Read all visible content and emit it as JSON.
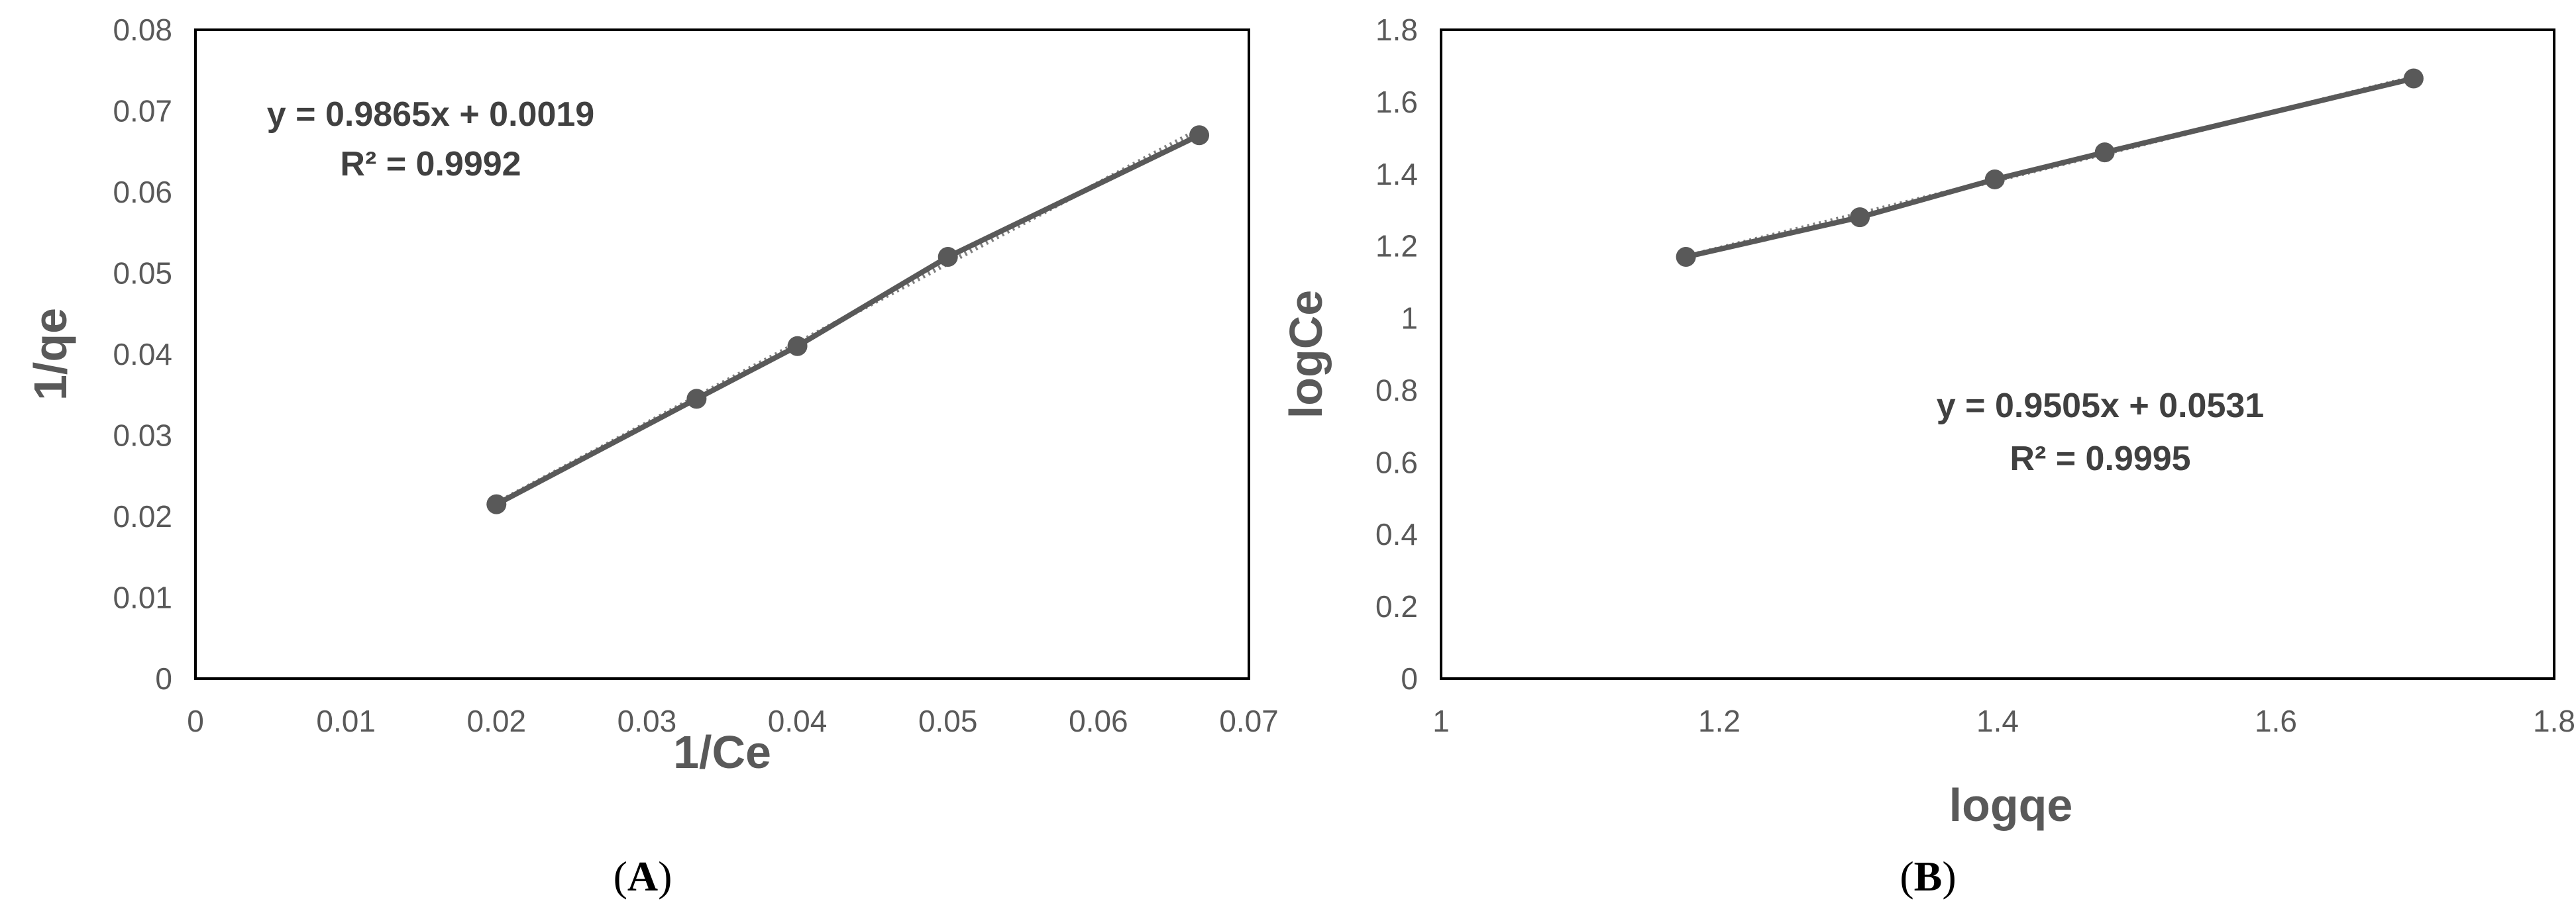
{
  "chart_data": [
    {
      "panel": "A",
      "type": "scatter",
      "xlabel": "1/Ce",
      "ylabel": "1/qe",
      "xlim": [
        0,
        0.07
      ],
      "ylim": [
        0,
        0.08
      ],
      "x_ticks": [
        "0",
        "0.01",
        "0.02",
        "0.03",
        "0.04",
        "0.05",
        "0.06",
        "0.07"
      ],
      "y_ticks": [
        "0",
        "0.01",
        "0.02",
        "0.03",
        "0.04",
        "0.05",
        "0.06",
        "0.07",
        "0.08"
      ],
      "series": [
        {
          "x": [
            0.02,
            0.0333,
            0.04,
            0.05,
            0.0667
          ],
          "y": [
            0.0215,
            0.0345,
            0.041,
            0.052,
            0.067
          ]
        }
      ],
      "trendline": {
        "slope": 0.9865,
        "intercept": 0.0019,
        "style": "dotted"
      },
      "annotations": [
        "y = 0.9865x + 0.0019",
        "R² = 0.9992"
      ],
      "grid": false,
      "legend": "none",
      "colors": {
        "series": "#595959",
        "frame": "#000000"
      }
    },
    {
      "panel": "B",
      "type": "scatter",
      "xlabel": "logqe",
      "ylabel": "logCe",
      "xlim": [
        1,
        1.8
      ],
      "ylim": [
        0,
        1.8
      ],
      "x_ticks": [
        "1",
        "1.2",
        "1.4",
        "1.6",
        "1.8"
      ],
      "y_ticks": [
        "0",
        "0.2",
        "0.4",
        "0.6",
        "0.8",
        "1",
        "1.2",
        "1.4",
        "1.6",
        "1.8"
      ],
      "series": [
        {
          "x": [
            1.176,
            1.301,
            1.398,
            1.477,
            1.699
          ],
          "y": [
            1.17,
            1.28,
            1.385,
            1.46,
            1.665
          ]
        }
      ],
      "trendline": {
        "slope": 0.9505,
        "intercept": 0.0531,
        "style": "dotted"
      },
      "annotations": [
        "y = 0.9505x + 0.0531",
        "R² = 0.9995"
      ],
      "grid": false,
      "legend": "none",
      "colors": {
        "series": "#595959",
        "frame": "#000000"
      }
    }
  ],
  "panel_labels": [
    "A",
    "B"
  ]
}
